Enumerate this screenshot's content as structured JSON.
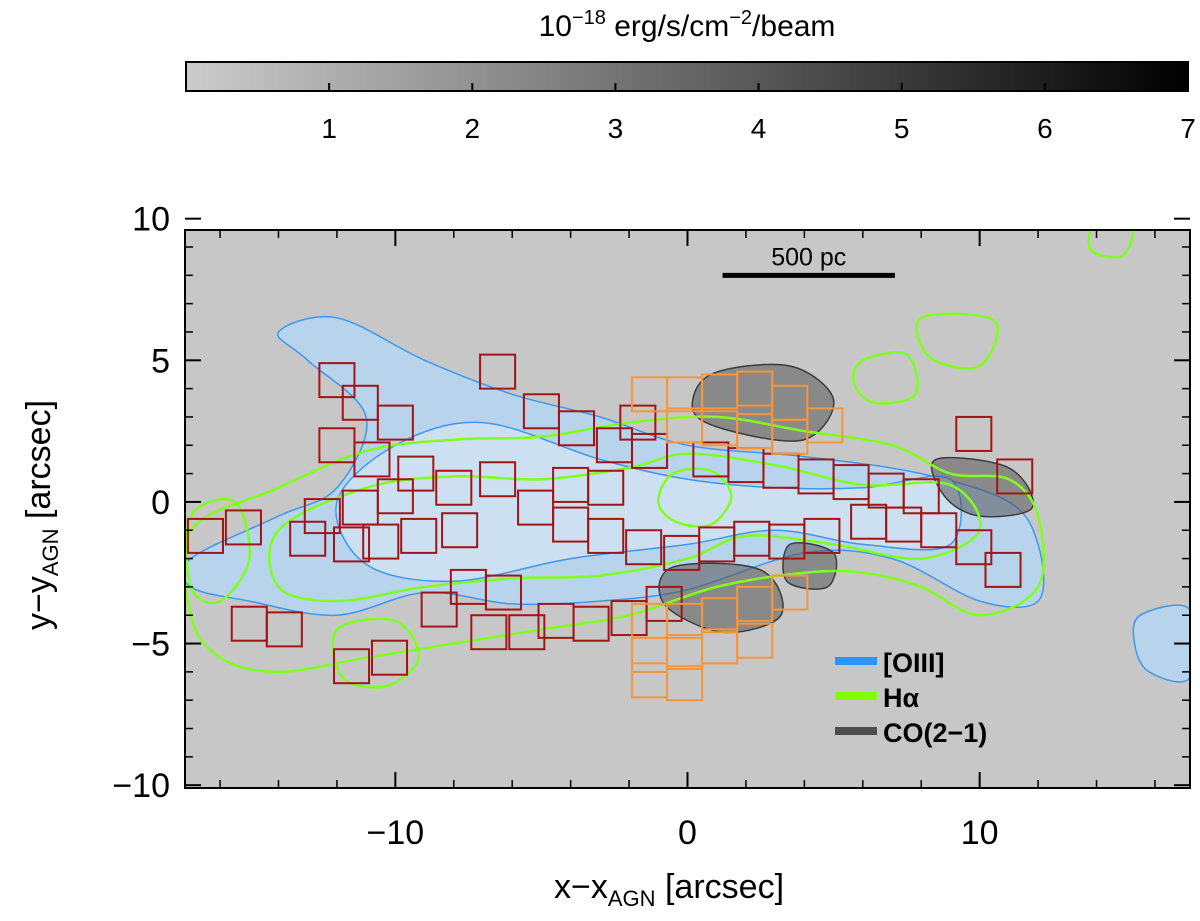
{
  "chart_data": {
    "type": "heatmap",
    "colorbar": {
      "label_base": "10",
      "label_exp": "−18",
      "label_unit": " erg/s/cm",
      "label_unit_exp": "−2",
      "label_tail": "/beam",
      "range": [
        0,
        7
      ],
      "ticks": [
        "1",
        "2",
        "3",
        "4",
        "5",
        "6",
        "7"
      ],
      "cmap": [
        "#cccccc",
        "#000000"
      ]
    },
    "xlabel": {
      "main": "x−x",
      "sub": "AGN",
      "unit": " [arcsec]"
    },
    "ylabel": {
      "main": "y−y",
      "sub": "AGN",
      "unit": " [arcsec]"
    },
    "xlim": [
      -17.2,
      17.2
    ],
    "ylim": [
      -10.1,
      9.6
    ],
    "xticks": [
      -10,
      0,
      10
    ],
    "xtick_labels": [
      "−10",
      "0",
      "10"
    ],
    "yticks": [
      -10,
      -5,
      0,
      5,
      10
    ],
    "ytick_labels": [
      "−10",
      "−5",
      "0",
      "5",
      "10"
    ],
    "scalebar": {
      "label": "500 pc",
      "x_range": [
        1.2,
        7.1
      ],
      "y": 8.0
    },
    "legend": {
      "position": "lower-right",
      "entries": [
        {
          "name": "[OIII]",
          "color": "#2a95ff"
        },
        {
          "name": "Hα",
          "color": "#7fff00"
        },
        {
          "name": "CO(2−1)",
          "color": "#4d4d4d"
        }
      ]
    },
    "colors": {
      "background": "#c7c7c7",
      "oiii_fill": "#b8d3ec",
      "oiii_line": "#3e98f0",
      "halpha_line": "#7fff1f",
      "co_line": "#3c3c3c",
      "co_dense": "#555555",
      "box_red": "#a01515",
      "box_orange": "#f5963a"
    },
    "oiii_region": [
      [
        -17,
        -2
      ],
      [
        -14,
        -0.5
      ],
      [
        -12,
        0.5
      ],
      [
        -11,
        3
      ],
      [
        -13,
        5
      ],
      [
        -14,
        6
      ],
      [
        -12,
        6.5
      ],
      [
        -9,
        5
      ],
      [
        -6,
        3.8
      ],
      [
        -3,
        3
      ],
      [
        0,
        2
      ],
      [
        4,
        1.6
      ],
      [
        8,
        1
      ],
      [
        11,
        0
      ],
      [
        12,
        -1.5
      ],
      [
        12,
        -3.5
      ],
      [
        10,
        -3.5
      ],
      [
        7,
        -2
      ],
      [
        4,
        -1.8
      ],
      [
        0,
        -3.1
      ],
      [
        -3,
        -3.5
      ],
      [
        -6,
        -3.6
      ],
      [
        -9,
        -3.2
      ],
      [
        -12,
        -4
      ],
      [
        -15,
        -3.5
      ],
      [
        -17,
        -3
      ]
    ],
    "oiii_inner": [
      [
        -12,
        0
      ],
      [
        -10,
        2
      ],
      [
        -7,
        2.8
      ],
      [
        -3,
        1.5
      ],
      [
        0,
        0.8
      ],
      [
        3,
        0.5
      ],
      [
        6,
        0.5
      ],
      [
        9,
        0.8
      ],
      [
        9,
        -1.5
      ],
      [
        6,
        -1.5
      ],
      [
        3,
        -1
      ],
      [
        0,
        -1.5
      ],
      [
        -4,
        -2
      ],
      [
        -8,
        -2.8
      ],
      [
        -11,
        -2.2
      ]
    ],
    "halpha_contours": [
      [
        [
          -17,
          -1
        ],
        [
          -14,
          0.5
        ],
        [
          -11,
          1.8
        ],
        [
          -8,
          2.2
        ],
        [
          -5,
          2.3
        ],
        [
          -2,
          2.8
        ],
        [
          1,
          3
        ],
        [
          4,
          2.5
        ],
        [
          7,
          2
        ],
        [
          9,
          1
        ],
        [
          11,
          0.8
        ],
        [
          12,
          -0.5
        ],
        [
          12,
          -3
        ],
        [
          10,
          -4
        ],
        [
          8,
          -3
        ],
        [
          6,
          -2.5
        ],
        [
          4,
          -2.5
        ],
        [
          1,
          -3
        ],
        [
          -2,
          -4
        ],
        [
          -5,
          -4.5
        ],
        [
          -8,
          -5
        ],
        [
          -11,
          -5.5
        ],
        [
          -14,
          -6
        ],
        [
          -16,
          -5.5
        ],
        [
          -17,
          -4
        ]
      ],
      [
        [
          -14,
          -1
        ],
        [
          -11,
          0.5
        ],
        [
          -8,
          0.9
        ],
        [
          -5,
          0.8
        ],
        [
          -2,
          1.2
        ],
        [
          0,
          1.7
        ],
        [
          3,
          1.3
        ],
        [
          6,
          0.6
        ],
        [
          9,
          0.6
        ],
        [
          10,
          -1
        ],
        [
          8,
          -2
        ],
        [
          5,
          -1.5
        ],
        [
          2,
          -1.2
        ],
        [
          0,
          -2
        ],
        [
          -3,
          -2.6
        ],
        [
          -6,
          -2.7
        ],
        [
          -9,
          -3
        ],
        [
          -12,
          -3.5
        ],
        [
          -14,
          -3
        ]
      ],
      [
        [
          -1,
          0
        ],
        [
          -0.5,
          1
        ],
        [
          0.8,
          1.1
        ],
        [
          1.5,
          0.2
        ],
        [
          0.8,
          -0.8
        ],
        [
          -0.4,
          -0.7
        ]
      ],
      [
        [
          14,
          10
        ],
        [
          15.2,
          9.8
        ],
        [
          14.9,
          8.7
        ],
        [
          13.8,
          8.9
        ]
      ],
      [
        [
          -12,
          -4.5
        ],
        [
          -10,
          -4.2
        ],
        [
          -9.2,
          -5.5
        ],
        [
          -10.3,
          -6.5
        ],
        [
          -11.8,
          -6.2
        ]
      ],
      [
        [
          6,
          5
        ],
        [
          7.5,
          5.2
        ],
        [
          7.8,
          3.8
        ],
        [
          6.4,
          3.5
        ],
        [
          5.7,
          4.2
        ]
      ],
      [
        [
          8,
          6.5
        ],
        [
          10.5,
          6.4
        ],
        [
          10,
          4.8
        ],
        [
          8.3,
          5.1
        ]
      ],
      [
        [
          -17,
          -0.5
        ],
        [
          -15.5,
          0
        ],
        [
          -15,
          -2
        ],
        [
          -16,
          -3.5
        ],
        [
          -17,
          -3
        ]
      ]
    ],
    "oiii_right_blob": [
      [
        15.5,
        -4
      ],
      [
        17.2,
        -3.8
      ],
      [
        17.2,
        -6.2
      ],
      [
        15.8,
        -6
      ],
      [
        15.3,
        -5
      ]
    ],
    "co_dense_regions": [
      [
        [
          0.8,
          4.5
        ],
        [
          3.5,
          4.8
        ],
        [
          5,
          3.6
        ],
        [
          4,
          2.2
        ],
        [
          1.5,
          2.5
        ],
        [
          0.2,
          3.2
        ]
      ],
      [
        [
          -0.5,
          -2.3
        ],
        [
          2.5,
          -2.4
        ],
        [
          3.2,
          -4
        ],
        [
          1.2,
          -4.6
        ],
        [
          -0.8,
          -3.6
        ]
      ],
      [
        [
          8.5,
          1.5
        ],
        [
          11,
          1.2
        ],
        [
          11.8,
          -0.2
        ],
        [
          10,
          -0.5
        ],
        [
          8.8,
          0.2
        ]
      ],
      [
        [
          3.5,
          -1.5
        ],
        [
          5,
          -1.8
        ],
        [
          4.8,
          -3
        ],
        [
          3.4,
          -2.8
        ]
      ]
    ],
    "red_boxes": [
      [
        -16.5,
        -1.2
      ],
      [
        -15.2,
        -0.9
      ],
      [
        -13,
        -1.3
      ],
      [
        -11.5,
        -1.5
      ],
      [
        -10.5,
        -1.4
      ],
      [
        -9.2,
        -1.2
      ],
      [
        -7.8,
        -1
      ],
      [
        -12,
        2
      ],
      [
        -10.8,
        1.5
      ],
      [
        -9.3,
        1
      ],
      [
        -8,
        0.5
      ],
      [
        -6.5,
        0.8
      ],
      [
        -5.2,
        -0.2
      ],
      [
        -4,
        0.6
      ],
      [
        -2.8,
        0.5
      ],
      [
        -12.5,
        -0.5
      ],
      [
        -11.2,
        -0.2
      ],
      [
        -10,
        0.2
      ],
      [
        -7.5,
        -3
      ],
      [
        -6.3,
        -3.2
      ],
      [
        -8.5,
        -3.8
      ],
      [
        -11.2,
        3.5
      ],
      [
        -10,
        2.8
      ],
      [
        -6.5,
        4.6
      ],
      [
        -5,
        3.2
      ],
      [
        -3.8,
        2.6
      ],
      [
        -2.5,
        2
      ],
      [
        -1.3,
        1.8
      ],
      [
        -12,
        4.3
      ],
      [
        -15,
        -4.3
      ],
      [
        -13.8,
        -4.5
      ],
      [
        -11.5,
        -5.8
      ],
      [
        -10.2,
        -5.5
      ],
      [
        -4,
        -0.8
      ],
      [
        -2.8,
        -1.2
      ],
      [
        -1.5,
        -1.6
      ],
      [
        -0.2,
        -1.8
      ],
      [
        1,
        -1.5
      ],
      [
        2.2,
        -1.3
      ],
      [
        3.4,
        -1.4
      ],
      [
        4.6,
        -1.2
      ],
      [
        0.8,
        1.5
      ],
      [
        2,
        1.3
      ],
      [
        3.2,
        1.1
      ],
      [
        4.4,
        0.9
      ],
      [
        5.6,
        0.7
      ],
      [
        6.8,
        0.4
      ],
      [
        8,
        0.2
      ],
      [
        6.2,
        -0.7
      ],
      [
        7.4,
        -0.8
      ],
      [
        8.6,
        -1.0
      ],
      [
        9.8,
        -1.6
      ],
      [
        10.8,
        -2.4
      ],
      [
        9.8,
        2.4
      ],
      [
        11.2,
        0.9
      ],
      [
        -4.5,
        -4.2
      ],
      [
        -3.3,
        -4.3
      ],
      [
        -2,
        -4.1
      ],
      [
        -0.8,
        -3.6
      ],
      [
        -1.7,
        2.8
      ],
      [
        -5.5,
        -4.6
      ],
      [
        -6.8,
        -4.6
      ]
    ],
    "orange_boxes": [
      [
        -1.3,
        3.8
      ],
      [
        -0.1,
        3.8
      ],
      [
        1.1,
        3.9
      ],
      [
        2.3,
        4
      ],
      [
        3.5,
        3.5
      ],
      [
        -0.1,
        2.7
      ],
      [
        1.1,
        2.6
      ],
      [
        2.3,
        2.5
      ],
      [
        3.5,
        2.3
      ],
      [
        4.7,
        2.7
      ],
      [
        -1.3,
        -4.2
      ],
      [
        -0.1,
        -4.2
      ],
      [
        1.1,
        -4
      ],
      [
        2.3,
        -3.6
      ],
      [
        3.5,
        -3.2
      ],
      [
        -1.3,
        -5.4
      ],
      [
        -0.1,
        -5.3
      ],
      [
        1.1,
        -5.1
      ],
      [
        2.3,
        -4.9
      ],
      [
        -1.3,
        -6.3
      ],
      [
        -0.1,
        -6.4
      ]
    ]
  }
}
